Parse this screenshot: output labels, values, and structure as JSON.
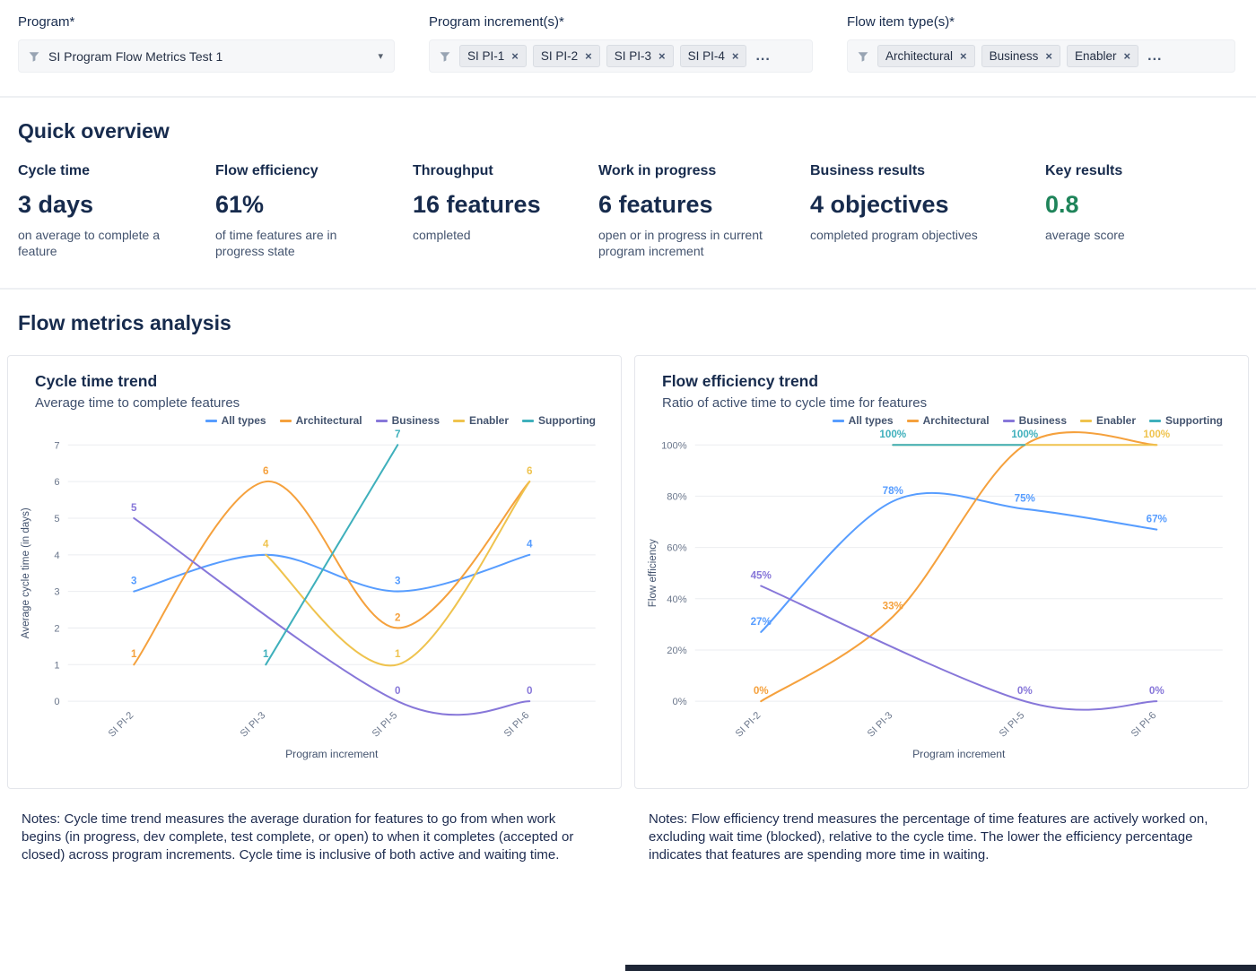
{
  "icons": {
    "dropdown_caret": "▾",
    "chip_remove": "×"
  },
  "filters": {
    "program": {
      "label": "Program*",
      "value": "SI Program Flow Metrics Test 1"
    },
    "program_increments": {
      "label": "Program increment(s)*",
      "chips": [
        "SI PI-1",
        "SI PI-2",
        "SI PI-3",
        "SI PI-4"
      ],
      "overflow": "..."
    },
    "flow_item_types": {
      "label": "Flow item type(s)*",
      "chips": [
        "Architectural",
        "Business",
        "Enabler"
      ],
      "overflow": "..."
    }
  },
  "quick_overview": {
    "title": "Quick overview",
    "metrics": [
      {
        "label": "Cycle time",
        "value": "3 days",
        "description": "on average to complete a feature",
        "value_color": "#172B4D"
      },
      {
        "label": "Flow efficiency",
        "value": "61%",
        "description": "of time features are in progress state",
        "value_color": "#172B4D"
      },
      {
        "label": "Throughput",
        "value": "16 features",
        "description": "completed",
        "value_color": "#172B4D"
      },
      {
        "label": "Work in progress",
        "value": "6 features",
        "description": "open or in progress in current program increment",
        "value_color": "#172B4D"
      },
      {
        "label": "Business results",
        "value": "4 objectives",
        "description": "completed program objectives",
        "value_color": "#172B4D"
      },
      {
        "label": "Key results",
        "value": "0.8",
        "description": "average score",
        "value_color": "#1F845A"
      }
    ]
  },
  "flow_metrics": {
    "title": "Flow metrics analysis",
    "notes": [
      "Notes: Cycle time trend measures the average duration for features to go from when work begins (in progress, dev complete, test complete, or open) to when it completes (accepted or closed) across program increments. Cycle time is inclusive of both active and waiting time.",
      "Notes: Flow efficiency trend measures the percentage of time features are actively worked on, excluding wait time (blocked), relative to the cycle time. The lower the efficiency percentage indicates that features are spending more time in waiting."
    ]
  },
  "chart_data": [
    {
      "type": "line",
      "title": "Cycle time trend",
      "subtitle": "Average time to complete features",
      "xlabel": "Program increment",
      "ylabel": "Average cycle time (in days)",
      "categories": [
        "SI PI-2",
        "SI PI-3",
        "SI PI-5",
        "SI PI-6"
      ],
      "ylim": [
        0,
        7
      ],
      "ytick_step": 1,
      "ytick_suffix": "",
      "label_suffix": "",
      "grid": true,
      "legend_position": "top-right",
      "series": [
        {
          "name": "All types",
          "color": "#579DFF",
          "values": [
            3,
            4,
            3,
            4
          ]
        },
        {
          "name": "Architectural",
          "color": "#F5A13D",
          "values": [
            1,
            6,
            2,
            6
          ]
        },
        {
          "name": "Business",
          "color": "#8777D9",
          "values": [
            5,
            null,
            0,
            0
          ]
        },
        {
          "name": "Enabler",
          "color": "#EFC34E",
          "values": [
            null,
            4,
            1,
            6
          ]
        },
        {
          "name": "Supporting",
          "color": "#3FB0BC",
          "values": [
            null,
            1,
            7,
            null
          ]
        }
      ]
    },
    {
      "type": "line",
      "title": "Flow efficiency trend",
      "subtitle": "Ratio of active time to cycle time for features",
      "xlabel": "Program increment",
      "ylabel": "Flow efficiency",
      "categories": [
        "SI PI-2",
        "SI PI-3",
        "SI PI-5",
        "SI PI-6"
      ],
      "ylim": [
        0,
        100
      ],
      "ytick_step": 20,
      "ytick_suffix": "%",
      "label_suffix": "%",
      "grid": true,
      "legend_position": "top-right",
      "series": [
        {
          "name": "All types",
          "color": "#579DFF",
          "values": [
            27,
            78,
            75,
            67
          ]
        },
        {
          "name": "Architectural",
          "color": "#F5A13D",
          "values": [
            0,
            33,
            100,
            100
          ]
        },
        {
          "name": "Business",
          "color": "#8777D9",
          "values": [
            45,
            null,
            0,
            0
          ]
        },
        {
          "name": "Enabler",
          "color": "#EFC34E",
          "values": [
            null,
            100,
            100,
            100
          ]
        },
        {
          "name": "Supporting",
          "color": "#3FB0BC",
          "values": [
            null,
            100,
            100,
            null
          ]
        }
      ]
    }
  ]
}
